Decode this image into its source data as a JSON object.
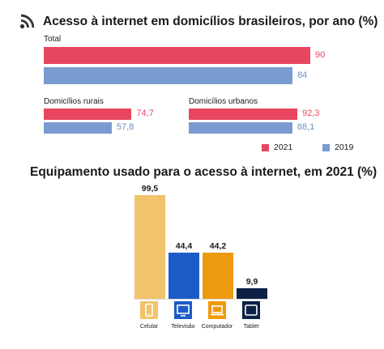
{
  "colors": {
    "red": "#e8465f",
    "blue": "#7a9bd0",
    "yellow": "#f1c36b",
    "cobalt": "#1d5bc8",
    "orange": "#ee9a0f",
    "navy": "#0d2145"
  },
  "header": {
    "icon": "rss-icon",
    "title": "Acesso à internet em domicílios brasileiros, por ano (%)"
  },
  "chart_data": [
    {
      "type": "bar",
      "orientation": "horizontal",
      "title": "Acesso à internet em domicílios brasileiros, por ano (%)",
      "xlim": [
        0,
        90
      ],
      "legend_placement": "bottom-right",
      "groups": [
        {
          "label": "Total",
          "values": {
            "2021": 90,
            "2019": 84
          },
          "labels": {
            "2021": "90",
            "2019": "84"
          }
        },
        {
          "label": "Domicílios rurais",
          "values": {
            "2021": 74.7,
            "2019": 57.8
          },
          "labels": {
            "2021": "74,7",
            "2019": "57,8"
          }
        },
        {
          "label": "Domicílios urbanos",
          "values": {
            "2021": 92.3,
            "2019": 88.1
          },
          "labels": {
            "2021": "92,3",
            "2019": "88,1"
          }
        }
      ],
      "series": [
        {
          "name": "2021",
          "color": "#e8465f"
        },
        {
          "name": "2019",
          "color": "#7a9bd0"
        }
      ]
    },
    {
      "type": "bar",
      "orientation": "vertical",
      "title": "Equipamento usado para o acesso à internet, em 2021 (%)",
      "ylim": [
        0,
        100
      ],
      "categories": [
        "Celular",
        "Televisão",
        "Computador",
        "Tablet"
      ],
      "values": [
        99.5,
        44.4,
        44.2,
        9.9
      ],
      "value_labels": [
        "99,5",
        "44,4",
        "44,2",
        "9,9"
      ],
      "colors": [
        "#f1c36b",
        "#1d5bc8",
        "#ee9a0f",
        "#0d2145"
      ],
      "icons": [
        "smartphone-icon",
        "tv-icon",
        "laptop-icon",
        "tablet-icon"
      ]
    }
  ]
}
